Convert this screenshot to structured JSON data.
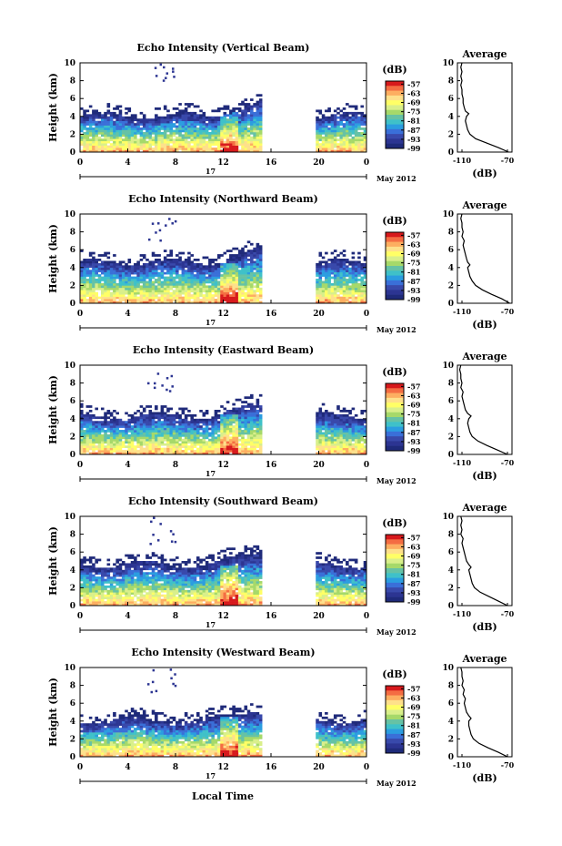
{
  "figure": {
    "month_label": "May 2012",
    "xlabel": "Local Time",
    "date_label": "17"
  },
  "chart_data": [
    {
      "type": "heatmap",
      "title": "Echo Intensity (Vertical Beam)",
      "ylabel": "Height (km)",
      "xlim": [
        0,
        24
      ],
      "ylim": [
        0,
        10
      ],
      "x_ticks": [
        "0",
        "4",
        "8",
        "12",
        "16",
        "20",
        "0"
      ],
      "y_ticks": [
        "0",
        "2",
        "4",
        "6",
        "8",
        "10"
      ],
      "colorbar": {
        "unit": "(dB)",
        "ticks": [
          "-57",
          "-63",
          "-69",
          "-75",
          "-81",
          "-87",
          "-93",
          "-99"
        ],
        "range": [
          -99,
          -55
        ]
      },
      "data_gap": [
        15.2,
        19.6
      ],
      "layer_top_km": 4.0,
      "average_profile": {
        "title": "Average",
        "xlabel": "(dB)",
        "xlim": [
          -114,
          -66
        ],
        "x_ticks": [
          "-110",
          "-70"
        ],
        "y_ticks": [
          "0",
          "2",
          "4",
          "6",
          "8",
          "10"
        ],
        "height_km": [
          0,
          0.5,
          1,
          1.5,
          2,
          2.5,
          3,
          3.5,
          4,
          4.3,
          4.6,
          5,
          5.5,
          6,
          6.5,
          7,
          7.5,
          8,
          8.5,
          9,
          9.5,
          10
        ],
        "value_db": [
          -69,
          -78,
          -88,
          -98,
          -103,
          -105,
          -106,
          -107,
          -106,
          -104,
          -107,
          -108,
          -109,
          -109,
          -110,
          -110,
          -111,
          -110,
          -111,
          -110,
          -111,
          -110
        ]
      }
    },
    {
      "type": "heatmap",
      "title": "Echo Intensity (Northward Beam)",
      "ylabel": "Height (km)",
      "xlim": [
        0,
        24
      ],
      "ylim": [
        0,
        10
      ],
      "x_ticks": [
        "0",
        "4",
        "8",
        "12",
        "16",
        "20",
        "0"
      ],
      "y_ticks": [
        "0",
        "2",
        "4",
        "6",
        "8",
        "10"
      ],
      "colorbar": {
        "unit": "(dB)",
        "ticks": [
          "-57",
          "-63",
          "-69",
          "-75",
          "-81",
          "-87",
          "-93",
          "-99"
        ],
        "range": [
          -99,
          -55
        ]
      },
      "data_gap": [
        15.2,
        19.6
      ],
      "layer_top_km": 4.5,
      "average_profile": {
        "title": "Average",
        "xlabel": "(dB)",
        "xlim": [
          -114,
          -66
        ],
        "x_ticks": [
          "-110",
          "-70"
        ],
        "y_ticks": [
          "0",
          "2",
          "4",
          "6",
          "8",
          "10"
        ],
        "height_km": [
          0,
          0.5,
          1,
          1.5,
          2,
          2.5,
          3,
          3.5,
          4,
          4.3,
          4.6,
          5,
          5.5,
          6,
          6.5,
          7,
          7.5,
          8,
          8.5,
          9,
          9.5,
          10
        ],
        "value_db": [
          -68,
          -75,
          -84,
          -92,
          -98,
          -101,
          -103,
          -104,
          -105,
          -103,
          -105,
          -106,
          -107,
          -108,
          -109,
          -108,
          -110,
          -109,
          -110,
          -110,
          -111,
          -110
        ]
      }
    },
    {
      "type": "heatmap",
      "title": "Echo Intensity (Eastward Beam)",
      "ylabel": "Height (km)",
      "xlim": [
        0,
        24
      ],
      "ylim": [
        0,
        10
      ],
      "x_ticks": [
        "0",
        "4",
        "8",
        "12",
        "16",
        "20",
        "0"
      ],
      "y_ticks": [
        "0",
        "2",
        "4",
        "6",
        "8",
        "10"
      ],
      "colorbar": {
        "unit": "(dB)",
        "ticks": [
          "-57",
          "-63",
          "-69",
          "-75",
          "-81",
          "-87",
          "-93",
          "-99"
        ],
        "range": [
          -99,
          -55
        ]
      },
      "data_gap": [
        15.2,
        19.6
      ],
      "layer_top_km": 4.2,
      "average_profile": {
        "title": "Average",
        "xlabel": "(dB)",
        "xlim": [
          -114,
          -66
        ],
        "x_ticks": [
          "-110",
          "-70"
        ],
        "y_ticks": [
          "0",
          "2",
          "4",
          "6",
          "8",
          "10"
        ],
        "height_km": [
          0,
          0.5,
          1,
          1.5,
          2,
          2.5,
          3,
          3.5,
          4,
          4.3,
          4.6,
          5,
          5.5,
          6,
          6.5,
          7,
          7.5,
          8,
          8.5,
          9,
          9.5,
          10
        ],
        "value_db": [
          -70,
          -79,
          -88,
          -96,
          -101,
          -103,
          -104,
          -105,
          -104,
          -102,
          -105,
          -107,
          -108,
          -109,
          -110,
          -109,
          -111,
          -110,
          -111,
          -111,
          -112,
          -111
        ]
      }
    },
    {
      "type": "heatmap",
      "title": "Echo Intensity (Southward Beam)",
      "ylabel": "Height (km)",
      "xlim": [
        0,
        24
      ],
      "ylim": [
        0,
        10
      ],
      "x_ticks": [
        "0",
        "4",
        "8",
        "12",
        "16",
        "20",
        "0"
      ],
      "y_ticks": [
        "0",
        "2",
        "4",
        "6",
        "8",
        "10"
      ],
      "colorbar": {
        "unit": "(dB)",
        "ticks": [
          "-57",
          "-63",
          "-69",
          "-75",
          "-81",
          "-87",
          "-93",
          "-99"
        ],
        "range": [
          -99,
          -55
        ]
      },
      "data_gap": [
        15.2,
        19.6
      ],
      "layer_top_km": 4.5,
      "average_profile": {
        "title": "Average",
        "xlabel": "(dB)",
        "xlim": [
          -114,
          -66
        ],
        "x_ticks": [
          "-110",
          "-70"
        ],
        "y_ticks": [
          "0",
          "2",
          "4",
          "6",
          "8",
          "10"
        ],
        "height_km": [
          0,
          0.5,
          1,
          1.5,
          2,
          2.5,
          3,
          3.5,
          4,
          4.3,
          4.6,
          5,
          5.5,
          6,
          6.5,
          7,
          7.5,
          8,
          8.5,
          9,
          9.5,
          10
        ],
        "value_db": [
          -70,
          -78,
          -86,
          -94,
          -99,
          -101,
          -102,
          -103,
          -104,
          -102,
          -104,
          -106,
          -107,
          -108,
          -109,
          -110,
          -109,
          -111,
          -110,
          -111,
          -110,
          -111
        ]
      }
    },
    {
      "type": "heatmap",
      "title": "Echo Intensity (Westward Beam)",
      "ylabel": "Height (km)",
      "xlim": [
        0,
        24
      ],
      "ylim": [
        0,
        10
      ],
      "x_ticks": [
        "0",
        "4",
        "8",
        "12",
        "16",
        "20",
        "0"
      ],
      "y_ticks": [
        "0",
        "2",
        "4",
        "6",
        "8",
        "10"
      ],
      "colorbar": {
        "unit": "(dB)",
        "ticks": [
          "-57",
          "-63",
          "-69",
          "-75",
          "-81",
          "-87",
          "-93",
          "-99"
        ],
        "range": [
          -99,
          -55
        ]
      },
      "data_gap": [
        15.2,
        19.6
      ],
      "layer_top_km": 4.0,
      "average_profile": {
        "title": "Average",
        "xlabel": "(dB)",
        "xlim": [
          -114,
          -66
        ],
        "x_ticks": [
          "-110",
          "-70"
        ],
        "y_ticks": [
          "0",
          "2",
          "4",
          "6",
          "8",
          "10"
        ],
        "height_km": [
          0,
          0.5,
          1,
          1.5,
          2,
          2.5,
          3,
          3.5,
          4,
          4.3,
          4.6,
          5,
          5.5,
          6,
          6.5,
          7,
          7.5,
          8,
          8.5,
          9,
          9.5,
          10
        ],
        "value_db": [
          -70,
          -78,
          -87,
          -95,
          -100,
          -102,
          -103,
          -104,
          -104,
          -102,
          -104,
          -106,
          -107,
          -108,
          -107,
          -109,
          -108,
          -110,
          -109,
          -110,
          -110,
          -111
        ]
      }
    }
  ]
}
